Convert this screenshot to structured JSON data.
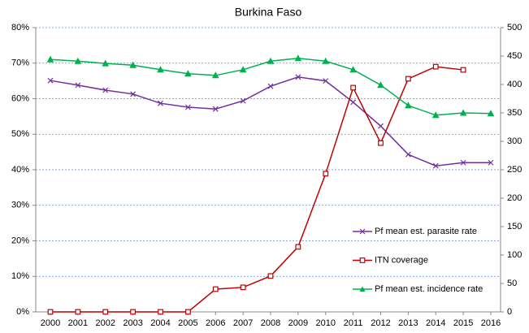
{
  "chart_data": {
    "type": "line",
    "title": "Burkina Faso",
    "categories": [
      "2000",
      "2001",
      "2002",
      "2003",
      "2004",
      "2005",
      "2006",
      "2007",
      "2008",
      "2009",
      "2010",
      "2011",
      "2012",
      "2013",
      "2014",
      "2015",
      "2016"
    ],
    "series": [
      {
        "name": "Pf mean est. parasite rate",
        "color": "#7030a0",
        "marker": "x",
        "values": [
          65.1,
          63.8,
          62.4,
          61.3,
          58.7,
          57.6,
          57.1,
          59.4,
          63.5,
          66.1,
          65.0,
          59.0,
          52.3,
          44.3,
          41.1,
          42.0,
          42.0
        ]
      },
      {
        "name": "ITN coverage",
        "color": "#c00000",
        "marker": "square",
        "values": [
          0,
          0,
          0,
          0,
          0,
          0,
          6.4,
          6.9,
          10.1,
          18.3,
          38.9,
          63.1,
          47.5,
          65.6,
          69.0,
          68.1,
          null
        ]
      },
      {
        "name": "Pf mean est. incidence rate",
        "color": "#00b050",
        "marker": "triangle",
        "axis": "y2",
        "values": [
          444,
          441,
          437,
          434,
          426,
          419,
          416,
          426,
          441,
          446,
          441,
          426,
          399,
          363,
          346,
          350,
          349
        ]
      }
    ],
    "ylim": [
      0,
      80
    ],
    "yticks": [
      {
        "value": 0,
        "label": "0%"
      },
      {
        "value": 10,
        "label": "10%"
      },
      {
        "value": 20,
        "label": "20%"
      },
      {
        "value": 30,
        "label": "30%"
      },
      {
        "value": 40,
        "label": "40%"
      },
      {
        "value": 50,
        "label": "50%"
      },
      {
        "value": 60,
        "label": "60%"
      },
      {
        "value": 70,
        "label": "70%"
      },
      {
        "value": 80,
        "label": "80%"
      }
    ],
    "y2lim": [
      0,
      500
    ],
    "y2ticks": [
      0,
      50,
      100,
      150,
      200,
      250,
      300,
      350,
      400,
      450,
      500
    ],
    "grid": true,
    "legend": "lower-right"
  }
}
